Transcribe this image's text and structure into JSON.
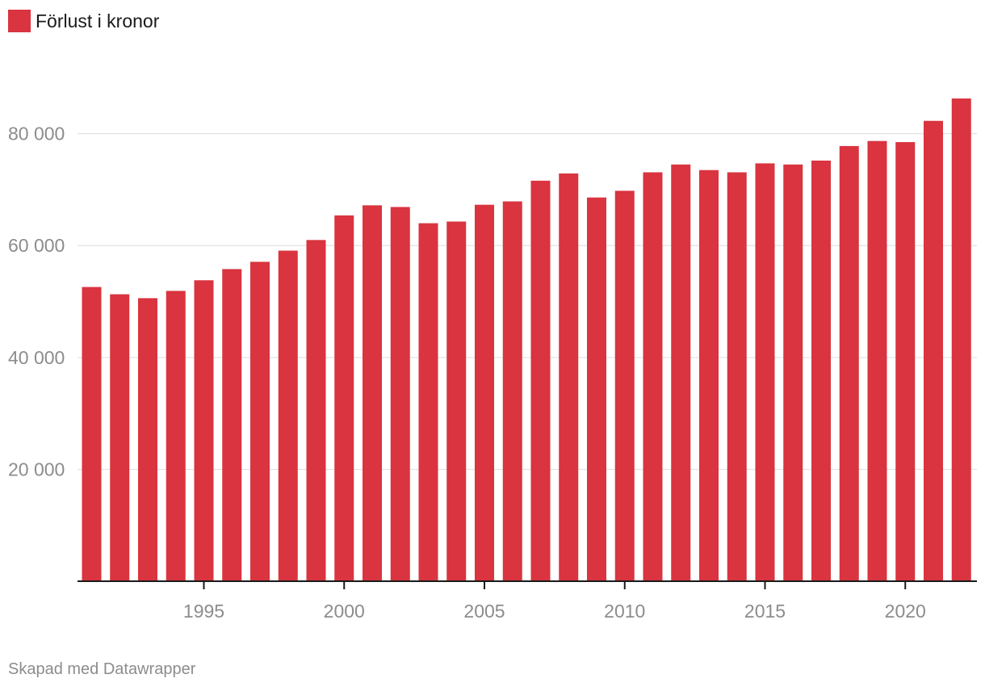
{
  "legend": {
    "label": "Förlust i kronor",
    "color": "#d9343f"
  },
  "footer": "Skapad med Datawrapper",
  "chart_data": {
    "type": "bar",
    "title": "",
    "xlabel": "",
    "ylabel": "",
    "series": [
      {
        "name": "Förlust i kronor",
        "color": "#d9343f"
      }
    ],
    "x": [
      1991,
      1992,
      1993,
      1994,
      1995,
      1996,
      1997,
      1998,
      1999,
      2000,
      2001,
      2002,
      2003,
      2004,
      2005,
      2006,
      2007,
      2008,
      2009,
      2010,
      2011,
      2012,
      2013,
      2014,
      2015,
      2016,
      2017,
      2018,
      2019,
      2020,
      2021,
      2022
    ],
    "values": [
      52600,
      51300,
      50600,
      51900,
      53800,
      55800,
      57100,
      59100,
      61000,
      65400,
      67200,
      66900,
      64000,
      64300,
      67300,
      67900,
      71600,
      72900,
      68600,
      69800,
      73100,
      74500,
      73500,
      73100,
      74700,
      74500,
      75200,
      77800,
      78700,
      78500,
      82300,
      86300
    ],
    "ylim": [
      0,
      86300
    ],
    "yticks": [
      20000,
      40000,
      60000,
      80000
    ],
    "ytick_labels": [
      "20 000",
      "40 000",
      "60 000",
      "80 000"
    ],
    "xticks": [
      1995,
      2000,
      2005,
      2010,
      2015,
      2020
    ],
    "xtick_labels": [
      "1995",
      "2000",
      "2005",
      "2010",
      "2015",
      "2020"
    ],
    "grid": true,
    "legend_position": "top-left"
  }
}
